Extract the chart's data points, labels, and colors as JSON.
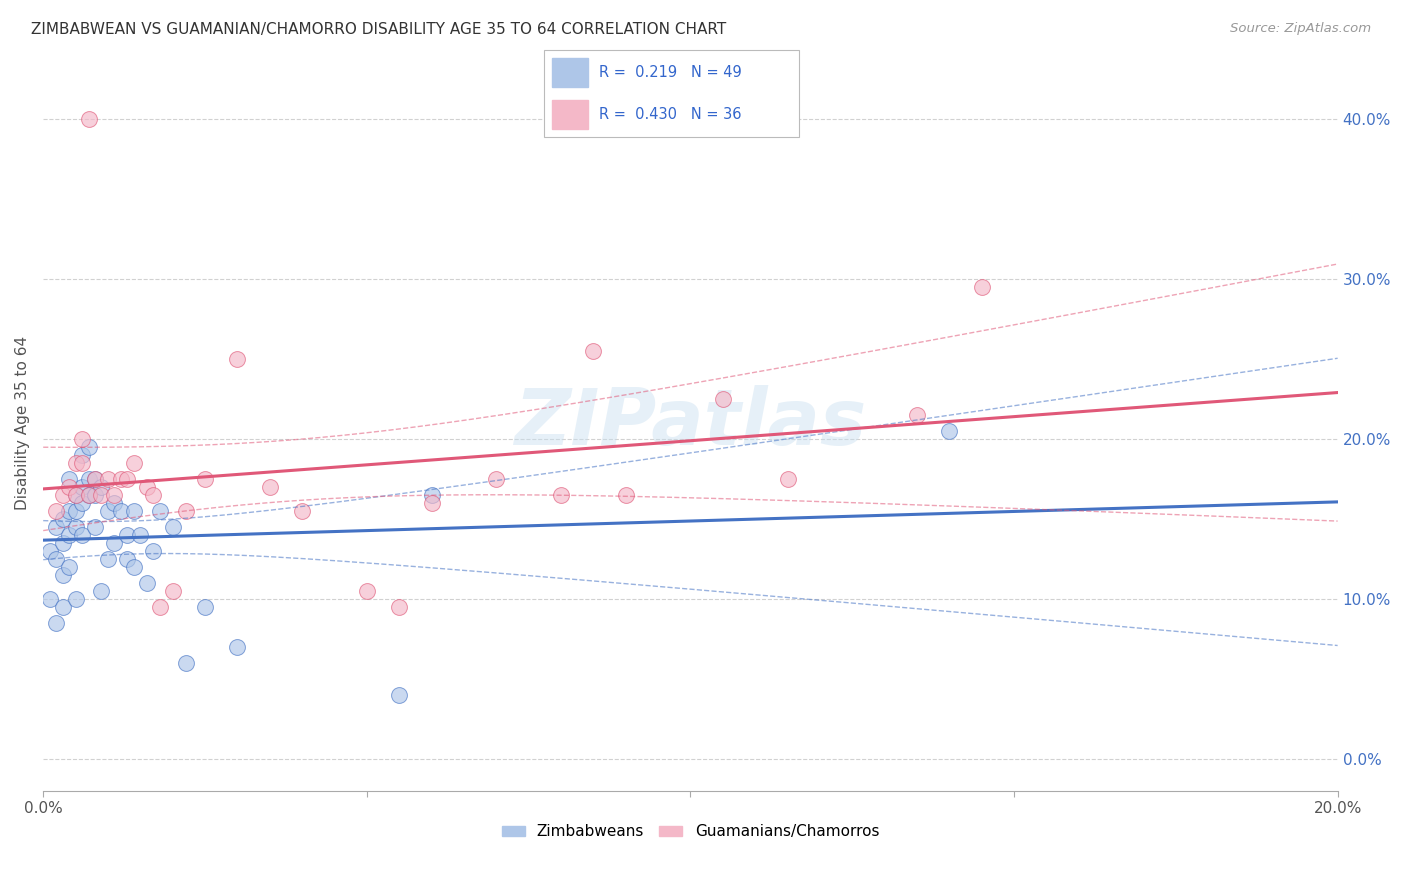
{
  "title": "ZIMBABWEAN VS GUAMANIAN/CHAMORRO DISABILITY AGE 35 TO 64 CORRELATION CHART",
  "source": "Source: ZipAtlas.com",
  "ylabel": "Disability Age 35 to 64",
  "xlim": [
    0.0,
    0.2
  ],
  "ylim": [
    -0.02,
    0.44
  ],
  "xticks": [
    0.0,
    0.05,
    0.1,
    0.15,
    0.2
  ],
  "yticks": [
    0.0,
    0.1,
    0.2,
    0.3,
    0.4
  ],
  "blue_r": 0.219,
  "blue_n": 49,
  "pink_r": 0.43,
  "pink_n": 36,
  "blue_color": "#aec6e8",
  "blue_line_color": "#4472c4",
  "pink_color": "#f4b8c8",
  "pink_line_color": "#e05878",
  "legend_blue_label": "Zimbabweans",
  "legend_pink_label": "Guamanians/Chamorros",
  "watermark": "ZIPatlas",
  "blue_intercept": 0.118,
  "blue_slope": 0.42,
  "pink_intercept": 0.148,
  "pink_slope": 0.88,
  "blue_x": [
    0.001,
    0.001,
    0.002,
    0.002,
    0.002,
    0.003,
    0.003,
    0.003,
    0.003,
    0.004,
    0.004,
    0.004,
    0.004,
    0.005,
    0.005,
    0.005,
    0.005,
    0.006,
    0.006,
    0.006,
    0.006,
    0.007,
    0.007,
    0.007,
    0.008,
    0.008,
    0.008,
    0.009,
    0.009,
    0.01,
    0.01,
    0.011,
    0.011,
    0.012,
    0.013,
    0.013,
    0.014,
    0.014,
    0.015,
    0.016,
    0.017,
    0.018,
    0.02,
    0.022,
    0.025,
    0.03,
    0.055,
    0.06,
    0.14
  ],
  "blue_y": [
    0.13,
    0.1,
    0.145,
    0.125,
    0.085,
    0.15,
    0.135,
    0.115,
    0.095,
    0.175,
    0.155,
    0.14,
    0.12,
    0.165,
    0.155,
    0.145,
    0.1,
    0.19,
    0.17,
    0.16,
    0.14,
    0.195,
    0.175,
    0.165,
    0.175,
    0.165,
    0.145,
    0.17,
    0.105,
    0.155,
    0.125,
    0.16,
    0.135,
    0.155,
    0.14,
    0.125,
    0.155,
    0.12,
    0.14,
    0.11,
    0.13,
    0.155,
    0.145,
    0.06,
    0.095,
    0.07,
    0.04,
    0.165,
    0.205
  ],
  "pink_x": [
    0.002,
    0.003,
    0.004,
    0.005,
    0.005,
    0.006,
    0.006,
    0.007,
    0.008,
    0.009,
    0.01,
    0.011,
    0.012,
    0.013,
    0.014,
    0.016,
    0.017,
    0.018,
    0.02,
    0.022,
    0.025,
    0.03,
    0.035,
    0.04,
    0.05,
    0.055,
    0.06,
    0.07,
    0.08,
    0.085,
    0.09,
    0.105,
    0.115,
    0.135,
    0.145,
    0.007
  ],
  "pink_y": [
    0.155,
    0.165,
    0.17,
    0.165,
    0.185,
    0.2,
    0.185,
    0.165,
    0.175,
    0.165,
    0.175,
    0.165,
    0.175,
    0.175,
    0.185,
    0.17,
    0.165,
    0.095,
    0.105,
    0.155,
    0.175,
    0.25,
    0.17,
    0.155,
    0.105,
    0.095,
    0.16,
    0.175,
    0.165,
    0.255,
    0.165,
    0.225,
    0.175,
    0.215,
    0.295,
    0.4
  ]
}
